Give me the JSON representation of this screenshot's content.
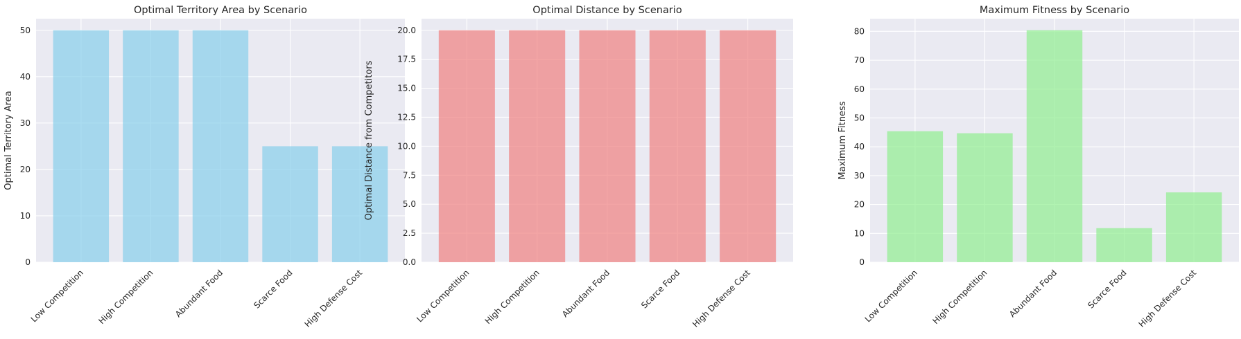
{
  "chart_data": [
    {
      "type": "bar",
      "title": "Optimal Territory Area by Scenario",
      "xlabel": "",
      "ylabel": "Optimal Territory Area",
      "categories": [
        "Low Competition",
        "High Competition",
        "Abundant Food",
        "Scarce Food",
        "High Defense Cost"
      ],
      "values": [
        50,
        50,
        50,
        25,
        25
      ],
      "ylim": [
        0,
        52.5
      ],
      "yticks": [
        0,
        10,
        20,
        30,
        40,
        50
      ],
      "ytick_labels": [
        "0",
        "10",
        "20",
        "30",
        "40",
        "50"
      ],
      "color": "#87ceeb",
      "grid": true
    },
    {
      "type": "bar",
      "title": "Optimal Distance by Scenario",
      "xlabel": "",
      "ylabel": "Optimal Distance from Competitors",
      "categories": [
        "Low Competition",
        "High Competition",
        "Abundant Food",
        "Scarce Food",
        "High Defense Cost"
      ],
      "values": [
        20,
        20,
        20,
        20,
        20
      ],
      "ylim": [
        0,
        21
      ],
      "yticks": [
        0,
        2.5,
        5,
        7.5,
        10,
        12.5,
        15,
        17.5,
        20
      ],
      "ytick_labels": [
        "0.0",
        "2.5",
        "5.0",
        "7.5",
        "10.0",
        "12.5",
        "15.0",
        "17.5",
        "20.0"
      ],
      "color": "#f08080",
      "grid": true
    },
    {
      "type": "bar",
      "title": "Maximum Fitness by Scenario",
      "xlabel": "",
      "ylabel": "Maximum Fitness",
      "categories": [
        "Low Competition",
        "High Competition",
        "Abundant Food",
        "Scarce Food",
        "High Defense Cost"
      ],
      "values": [
        45.4,
        44.7,
        80.4,
        11.8,
        24.2
      ],
      "ylim": [
        0,
        84.4
      ],
      "yticks": [
        0,
        10,
        20,
        30,
        40,
        50,
        60,
        70,
        80
      ],
      "ytick_labels": [
        "0",
        "10",
        "20",
        "30",
        "40",
        "50",
        "60",
        "70",
        "80"
      ],
      "color": "#90ee90",
      "grid": true
    }
  ]
}
